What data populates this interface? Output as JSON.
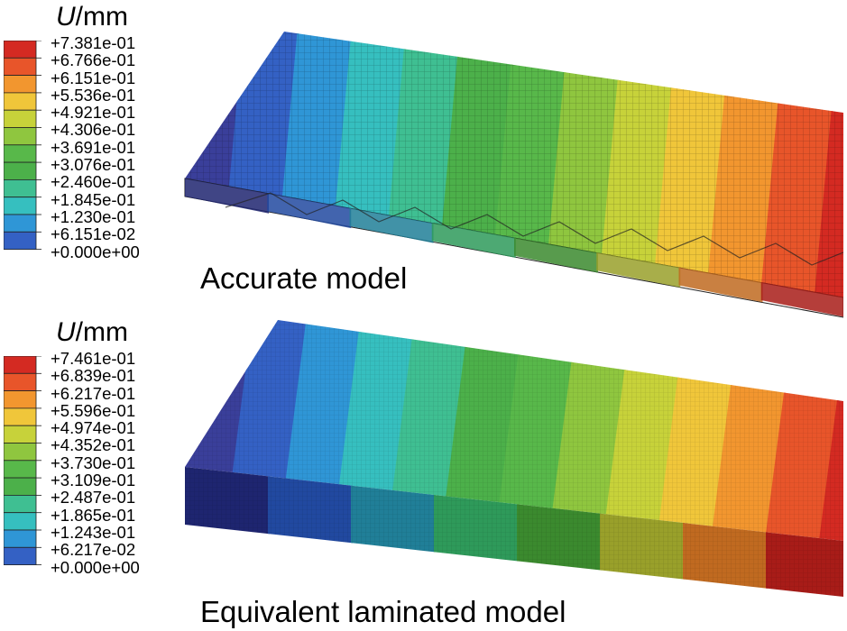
{
  "figures": [
    {
      "id": "accurate",
      "legend": {
        "variable": "U",
        "unit": "/mm",
        "labels": [
          "+7.381e-01",
          "+6.766e-01",
          "+6.151e-01",
          "+5.536e-01",
          "+4.921e-01",
          "+4.306e-01",
          "+3.691e-01",
          "+3.076e-01",
          "+2.460e-01",
          "+1.845e-01",
          "+1.230e-01",
          "+6.151e-02",
          "+0.000e+00"
        ]
      },
      "caption": "Accurate model"
    },
    {
      "id": "equivalent",
      "legend": {
        "variable": "U",
        "unit": "/mm",
        "labels": [
          "+7.461e-01",
          "+6.839e-01",
          "+6.217e-01",
          "+5.596e-01",
          "+4.974e-01",
          "+4.352e-01",
          "+3.730e-01",
          "+3.109e-01",
          "+2.487e-01",
          "+1.865e-01",
          "+1.243e-01",
          "+6.217e-02",
          "+0.000e+00"
        ]
      },
      "caption": "Equivalent laminated model"
    }
  ],
  "colors": {
    "scale": [
      "#3a3f9a",
      "#3461c4",
      "#2f96d6",
      "#36bfbf",
      "#3fbf92",
      "#4cb04a",
      "#58b84a",
      "#8fc63f",
      "#c7d23a",
      "#f0c63a",
      "#f2962f",
      "#e8552a",
      "#d42a22"
    ],
    "side_gradient": [
      "#1e2570",
      "#2149a0",
      "#207f98",
      "#2e9a5a",
      "#3b8a2e",
      "#99a02a",
      "#c06a20",
      "#a81c18"
    ]
  }
}
